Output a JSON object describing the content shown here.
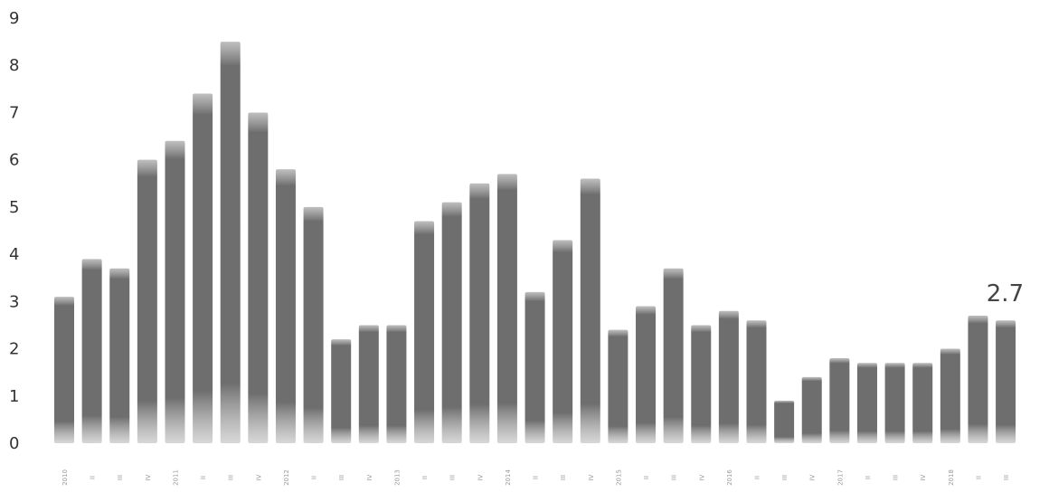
{
  "chart_data": {
    "type": "bar",
    "title": "",
    "xlabel": "",
    "ylabel": "",
    "ylim": [
      0,
      9
    ],
    "yticks": [
      "0",
      "1",
      "2",
      "3",
      "4",
      "5",
      "6",
      "7",
      "8",
      "9"
    ],
    "grid": false,
    "legend": "none",
    "bar_color": "#6f6f6f",
    "categories": [
      "2010",
      "II",
      "III",
      "IV",
      "2011",
      "II",
      "III",
      "IV",
      "2012",
      "II",
      "III",
      "IV",
      "2013",
      "II",
      "III",
      "IV",
      "2014",
      "II",
      "III",
      "IV",
      "2015",
      "II",
      "III",
      "IV",
      "2016",
      "II",
      "III",
      "IV",
      "2017",
      "II",
      "III",
      "IV",
      "2018",
      "II",
      "III"
    ],
    "values": [
      3.1,
      3.9,
      3.7,
      6.0,
      6.4,
      7.4,
      8.5,
      7.0,
      5.8,
      5.0,
      2.2,
      2.5,
      2.5,
      4.7,
      5.1,
      5.5,
      5.7,
      3.2,
      4.3,
      5.6,
      2.4,
      2.9,
      3.7,
      2.5,
      2.8,
      2.6,
      0.9,
      1.4,
      1.8,
      1.7,
      1.7,
      1.7,
      2.0,
      2.7,
      2.6
    ],
    "annotations": [
      {
        "text": "2.7",
        "index": 33
      }
    ]
  }
}
